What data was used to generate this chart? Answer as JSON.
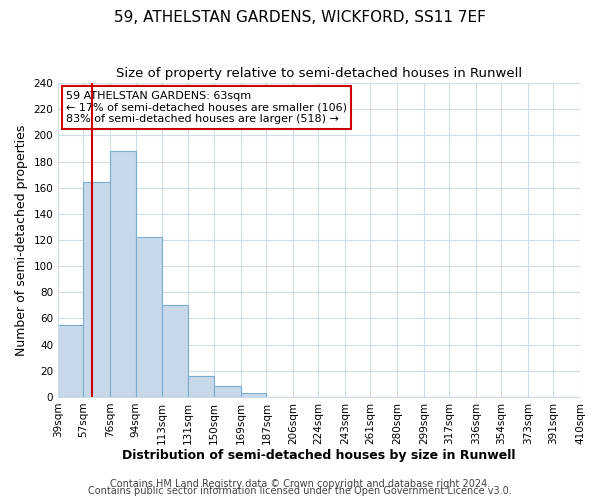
{
  "title": "59, ATHELSTAN GARDENS, WICKFORD, SS11 7EF",
  "subtitle": "Size of property relative to semi-detached houses in Runwell",
  "xlabel": "Distribution of semi-detached houses by size in Runwell",
  "ylabel": "Number of semi-detached properties",
  "bin_edges": [
    39,
    57,
    76,
    94,
    113,
    131,
    150,
    169,
    187,
    206,
    224,
    243,
    261,
    280,
    299,
    317,
    336,
    354,
    373,
    391,
    410
  ],
  "bin_labels": [
    "39sqm",
    "57sqm",
    "76sqm",
    "94sqm",
    "113sqm",
    "131sqm",
    "150sqm",
    "169sqm",
    "187sqm",
    "206sqm",
    "224sqm",
    "243sqm",
    "261sqm",
    "280sqm",
    "299sqm",
    "317sqm",
    "336sqm",
    "354sqm",
    "373sqm",
    "391sqm",
    "410sqm"
  ],
  "bar_heights": [
    55,
    164,
    188,
    122,
    70,
    16,
    8,
    3,
    0,
    0,
    0,
    0,
    0,
    0,
    0,
    0,
    0,
    0,
    0,
    0
  ],
  "bar_color": "#c8d8eb",
  "bar_edge_color": "#7aaed0",
  "ylim": [
    0,
    240
  ],
  "yticks": [
    0,
    20,
    40,
    60,
    80,
    100,
    120,
    140,
    160,
    180,
    200,
    220,
    240
  ],
  "property_line_x": 63,
  "property_line_color": "#cc0000",
  "annotation_title": "59 ATHELSTAN GARDENS: 63sqm",
  "annotation_line1": "← 17% of semi-detached houses are smaller (106)",
  "annotation_line2": "83% of semi-detached houses are larger (518) →",
  "annotation_box_color": "#cc0000",
  "footer_line1": "Contains HM Land Registry data © Crown copyright and database right 2024.",
  "footer_line2": "Contains public sector information licensed under the Open Government Licence v3.0.",
  "background_color": "#ffffff",
  "grid_color": "#d0dce8",
  "title_fontsize": 11,
  "subtitle_fontsize": 9.5,
  "label_fontsize": 9,
  "tick_fontsize": 7.5,
  "footer_fontsize": 7
}
